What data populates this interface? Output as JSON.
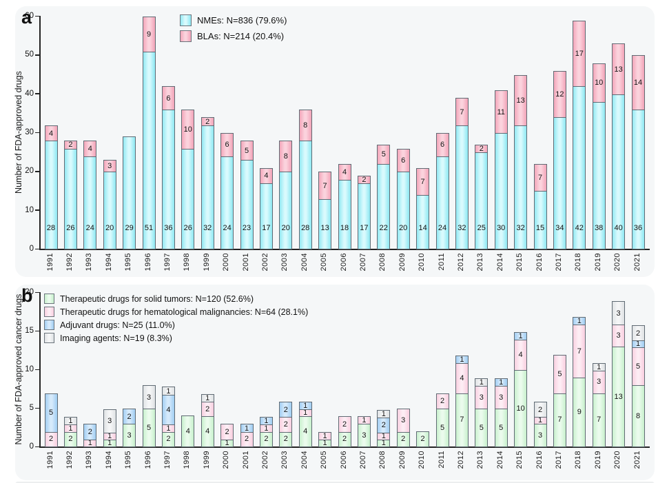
{
  "panels": {
    "a": {
      "label": "a"
    },
    "b": {
      "label": "b"
    }
  },
  "chart_data": [
    {
      "panel": "a",
      "type": "bar",
      "stacked": true,
      "ylabel": "Number of FDA-approved drugs",
      "ylim": [
        0,
        60
      ],
      "yticks": [
        0,
        10,
        20,
        30,
        40,
        50,
        60
      ],
      "grid": false,
      "legend_position": "upper-left-inset",
      "categories": [
        "1991",
        "1992",
        "1993",
        "1994",
        "1995",
        "1996",
        "1997",
        "1998",
        "1999",
        "2000",
        "2001",
        "2002",
        "2003",
        "2004",
        "2005",
        "2006",
        "2007",
        "2008",
        "2009",
        "2010",
        "2011",
        "2012",
        "2013",
        "2014",
        "2015",
        "2016",
        "2017",
        "2018",
        "2019",
        "2020",
        "2021"
      ],
      "series": [
        {
          "name": "NMEs: N=836 (79.6%)",
          "color": "#92e9f3",
          "highlight": "#d9fafd",
          "label_placement": "bottom",
          "values": [
            28,
            26,
            24,
            20,
            29,
            51,
            36,
            26,
            32,
            24,
            23,
            17,
            20,
            28,
            13,
            18,
            17,
            22,
            20,
            14,
            24,
            32,
            25,
            30,
            32,
            15,
            34,
            42,
            38,
            40,
            36
          ]
        },
        {
          "name": "BLAs: N=214 (20.4%)",
          "color": "#f3a6ba",
          "highlight": "#fbd3dd",
          "label_placement": "center",
          "values": [
            4,
            2,
            4,
            3,
            0,
            9,
            6,
            10,
            2,
            6,
            5,
            4,
            8,
            8,
            7,
            4,
            2,
            5,
            6,
            7,
            6,
            7,
            2,
            11,
            13,
            7,
            12,
            17,
            10,
            13,
            14
          ]
        }
      ]
    },
    {
      "panel": "b",
      "type": "bar",
      "stacked": true,
      "ylabel": "Number of FDA-approved cancer drugs",
      "ylim": [
        0,
        20
      ],
      "yticks": [
        0,
        5,
        10,
        15,
        20
      ],
      "grid": false,
      "legend_position": "upper-left-inset",
      "categories": [
        "1991",
        "1992",
        "1993",
        "1994",
        "1995",
        "1996",
        "1997",
        "1998",
        "1999",
        "2000",
        "2001",
        "2002",
        "2003",
        "2004",
        "2005",
        "2006",
        "2007",
        "2008",
        "2009",
        "2010",
        "2011",
        "2012",
        "2013",
        "2014",
        "2015",
        "2016",
        "2017",
        "2018",
        "2019",
        "2020",
        "2021"
      ],
      "series": [
        {
          "name": "Therapeutic drugs for solid tumors: N=120 (52.6%)",
          "color": "#c9f1ce",
          "highlight": "#ebfbed",
          "label_placement": "center",
          "values": [
            0,
            2,
            0,
            1,
            3,
            5,
            2,
            4,
            4,
            1,
            0,
            2,
            2,
            4,
            1,
            2,
            3,
            1,
            2,
            2,
            5,
            7,
            5,
            5,
            10,
            3,
            7,
            9,
            7,
            13,
            8
          ]
        },
        {
          "name": "Therapeutic drugs for hematological malignancies: N=64 (28.1%)",
          "color": "#f9d0e0",
          "highlight": "#fdedf4",
          "label_placement": "center",
          "values": [
            2,
            1,
            1,
            1,
            0,
            0,
            1,
            0,
            2,
            2,
            2,
            1,
            2,
            1,
            1,
            2,
            1,
            1,
            3,
            0,
            2,
            4,
            3,
            3,
            4,
            1,
            5,
            7,
            3,
            3,
            5
          ]
        },
        {
          "name": "Adjuvant drugs: N=25 (11.0%)",
          "color": "#a3cff3",
          "highlight": "#d6eafb",
          "label_placement": "center",
          "values": [
            5,
            0,
            2,
            0,
            2,
            0,
            4,
            0,
            0,
            0,
            1,
            1,
            2,
            1,
            0,
            0,
            0,
            2,
            0,
            0,
            0,
            1,
            0,
            1,
            1,
            0,
            0,
            1,
            0,
            0,
            1
          ]
        },
        {
          "name": "Imaging agents: N=19 (8.3%)",
          "color": "#e0e3e5",
          "highlight": "#f5f6f7",
          "label_placement": "center",
          "values": [
            0,
            1,
            0,
            3,
            0,
            3,
            1,
            0,
            1,
            0,
            0,
            0,
            0,
            0,
            0,
            0,
            0,
            1,
            0,
            0,
            0,
            0,
            1,
            0,
            0,
            2,
            0,
            0,
            1,
            3,
            2
          ]
        }
      ]
    }
  ]
}
